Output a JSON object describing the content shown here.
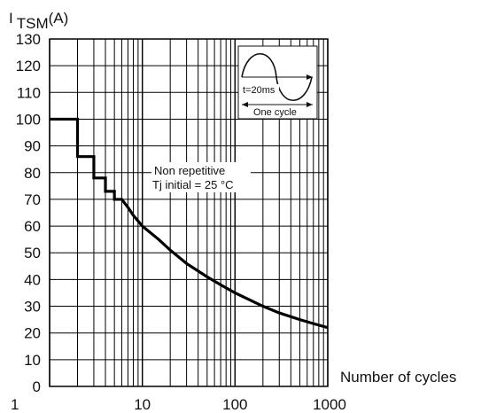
{
  "chart_data": {
    "type": "line",
    "title": "",
    "ylabel": {
      "main": "I",
      "sub": "TSM",
      "unit": "(A)"
    },
    "xlabel": "Number of cycles",
    "xscale": "log",
    "xlim": [
      1,
      1000
    ],
    "ylim": [
      0,
      130
    ],
    "x_ticks": [
      1,
      10,
      100,
      1000
    ],
    "x_tick_labels": [
      "1",
      "10",
      "100",
      "1000"
    ],
    "y_ticks": [
      0,
      10,
      20,
      30,
      40,
      50,
      60,
      70,
      80,
      90,
      100,
      110,
      120,
      130
    ],
    "y_tick_labels": [
      "0",
      "10",
      "20",
      "30",
      "40",
      "50",
      "60",
      "70",
      "80",
      "90",
      "100",
      "110",
      "120",
      "130"
    ],
    "grid": true,
    "legend": "none",
    "series": [
      {
        "values_step": [
          {
            "x": 1,
            "y": 100
          },
          {
            "x": 2,
            "y": 100
          },
          {
            "x": 2,
            "y": 86
          },
          {
            "x": 3,
            "y": 86
          },
          {
            "x": 3,
            "y": 78
          },
          {
            "x": 4,
            "y": 78
          },
          {
            "x": 4,
            "y": 73
          },
          {
            "x": 5,
            "y": 73
          },
          {
            "x": 5,
            "y": 70
          },
          {
            "x": 6,
            "y": 70
          }
        ],
        "values_curve": [
          {
            "x": 6,
            "y": 70
          },
          {
            "x": 7,
            "y": 67
          },
          {
            "x": 8,
            "y": 64
          },
          {
            "x": 10,
            "y": 60
          },
          {
            "x": 15,
            "y": 55
          },
          {
            "x": 20,
            "y": 51
          },
          {
            "x": 30,
            "y": 46
          },
          {
            "x": 50,
            "y": 41
          },
          {
            "x": 70,
            "y": 38
          },
          {
            "x": 100,
            "y": 35
          },
          {
            "x": 200,
            "y": 30
          },
          {
            "x": 300,
            "y": 27.5
          },
          {
            "x": 500,
            "y": 25
          },
          {
            "x": 700,
            "y": 23.5
          },
          {
            "x": 1000,
            "y": 22
          }
        ]
      }
    ],
    "annotations": {
      "condition_line1": "Non repetitive",
      "condition_line2": "Tj initial = 25 °C",
      "inset_period": "t=20ms",
      "inset_cycle": "One cycle"
    }
  }
}
